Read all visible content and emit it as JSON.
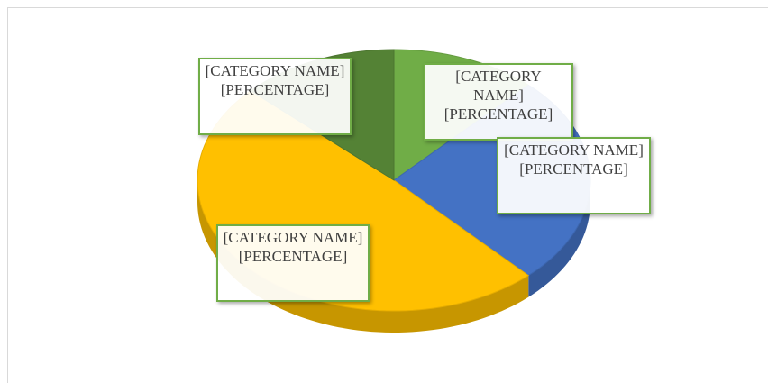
{
  "chart_data": {
    "type": "pie3d",
    "categories": [
      null,
      null,
      null,
      null
    ],
    "values": [
      12,
      26,
      49,
      13
    ],
    "value_labels": [
      "[CATEGORY NAME] [PERCENTAGE]",
      "[CATEGORY NAME] [PERCENTAGE]",
      "[CATEGORY NAME] [PERCENTAGE]",
      "[CATEGORY NAME] [PERCENTAGE]"
    ],
    "colors": [
      "#70ad47",
      "#4472c4",
      "#ffc000",
      "#548235"
    ]
  }
}
